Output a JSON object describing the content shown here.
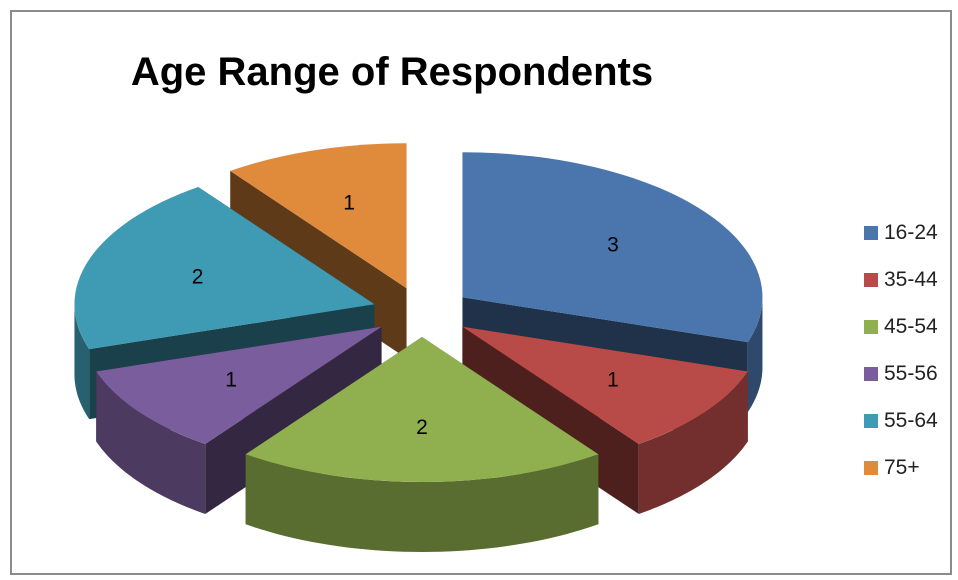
{
  "chart_data": {
    "type": "pie",
    "style": "3d-exploded",
    "title": "Age Range of Respondents",
    "categories": [
      "16-24",
      "35-44",
      "45-54",
      "55-56",
      "55-64",
      "75+"
    ],
    "values": [
      3,
      1,
      2,
      1,
      2,
      1
    ],
    "colors": [
      "#4a76ad",
      "#b84b48",
      "#90b04f",
      "#7a5d9c",
      "#3f9bb3",
      "#e08a3c"
    ],
    "data_labels": true,
    "legend": "right"
  }
}
